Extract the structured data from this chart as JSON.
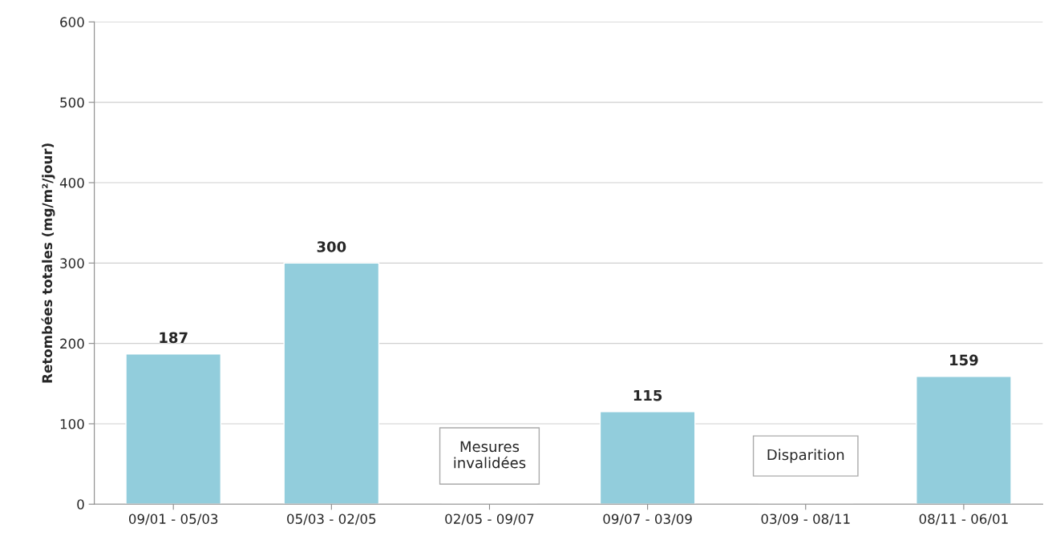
{
  "chart_data": {
    "type": "bar",
    "categories": [
      "09/01 - 05/03",
      "05/03 - 02/05",
      "02/05 - 09/07",
      "09/07 - 03/09",
      "03/09 - 08/11",
      "08/11 - 06/01"
    ],
    "values": [
      187,
      300,
      null,
      115,
      null,
      159
    ],
    "color": "#92cddc",
    "ylabel": "Retombées totales (mg/m²/jour)",
    "ylim": [
      0,
      600
    ],
    "yticks": [
      0,
      100,
      200,
      300,
      400,
      500,
      600
    ],
    "grid": "y",
    "data_labels": true,
    "legend": false,
    "annotations": [
      "Mesures\ninvalidées",
      "Disparition"
    ]
  }
}
